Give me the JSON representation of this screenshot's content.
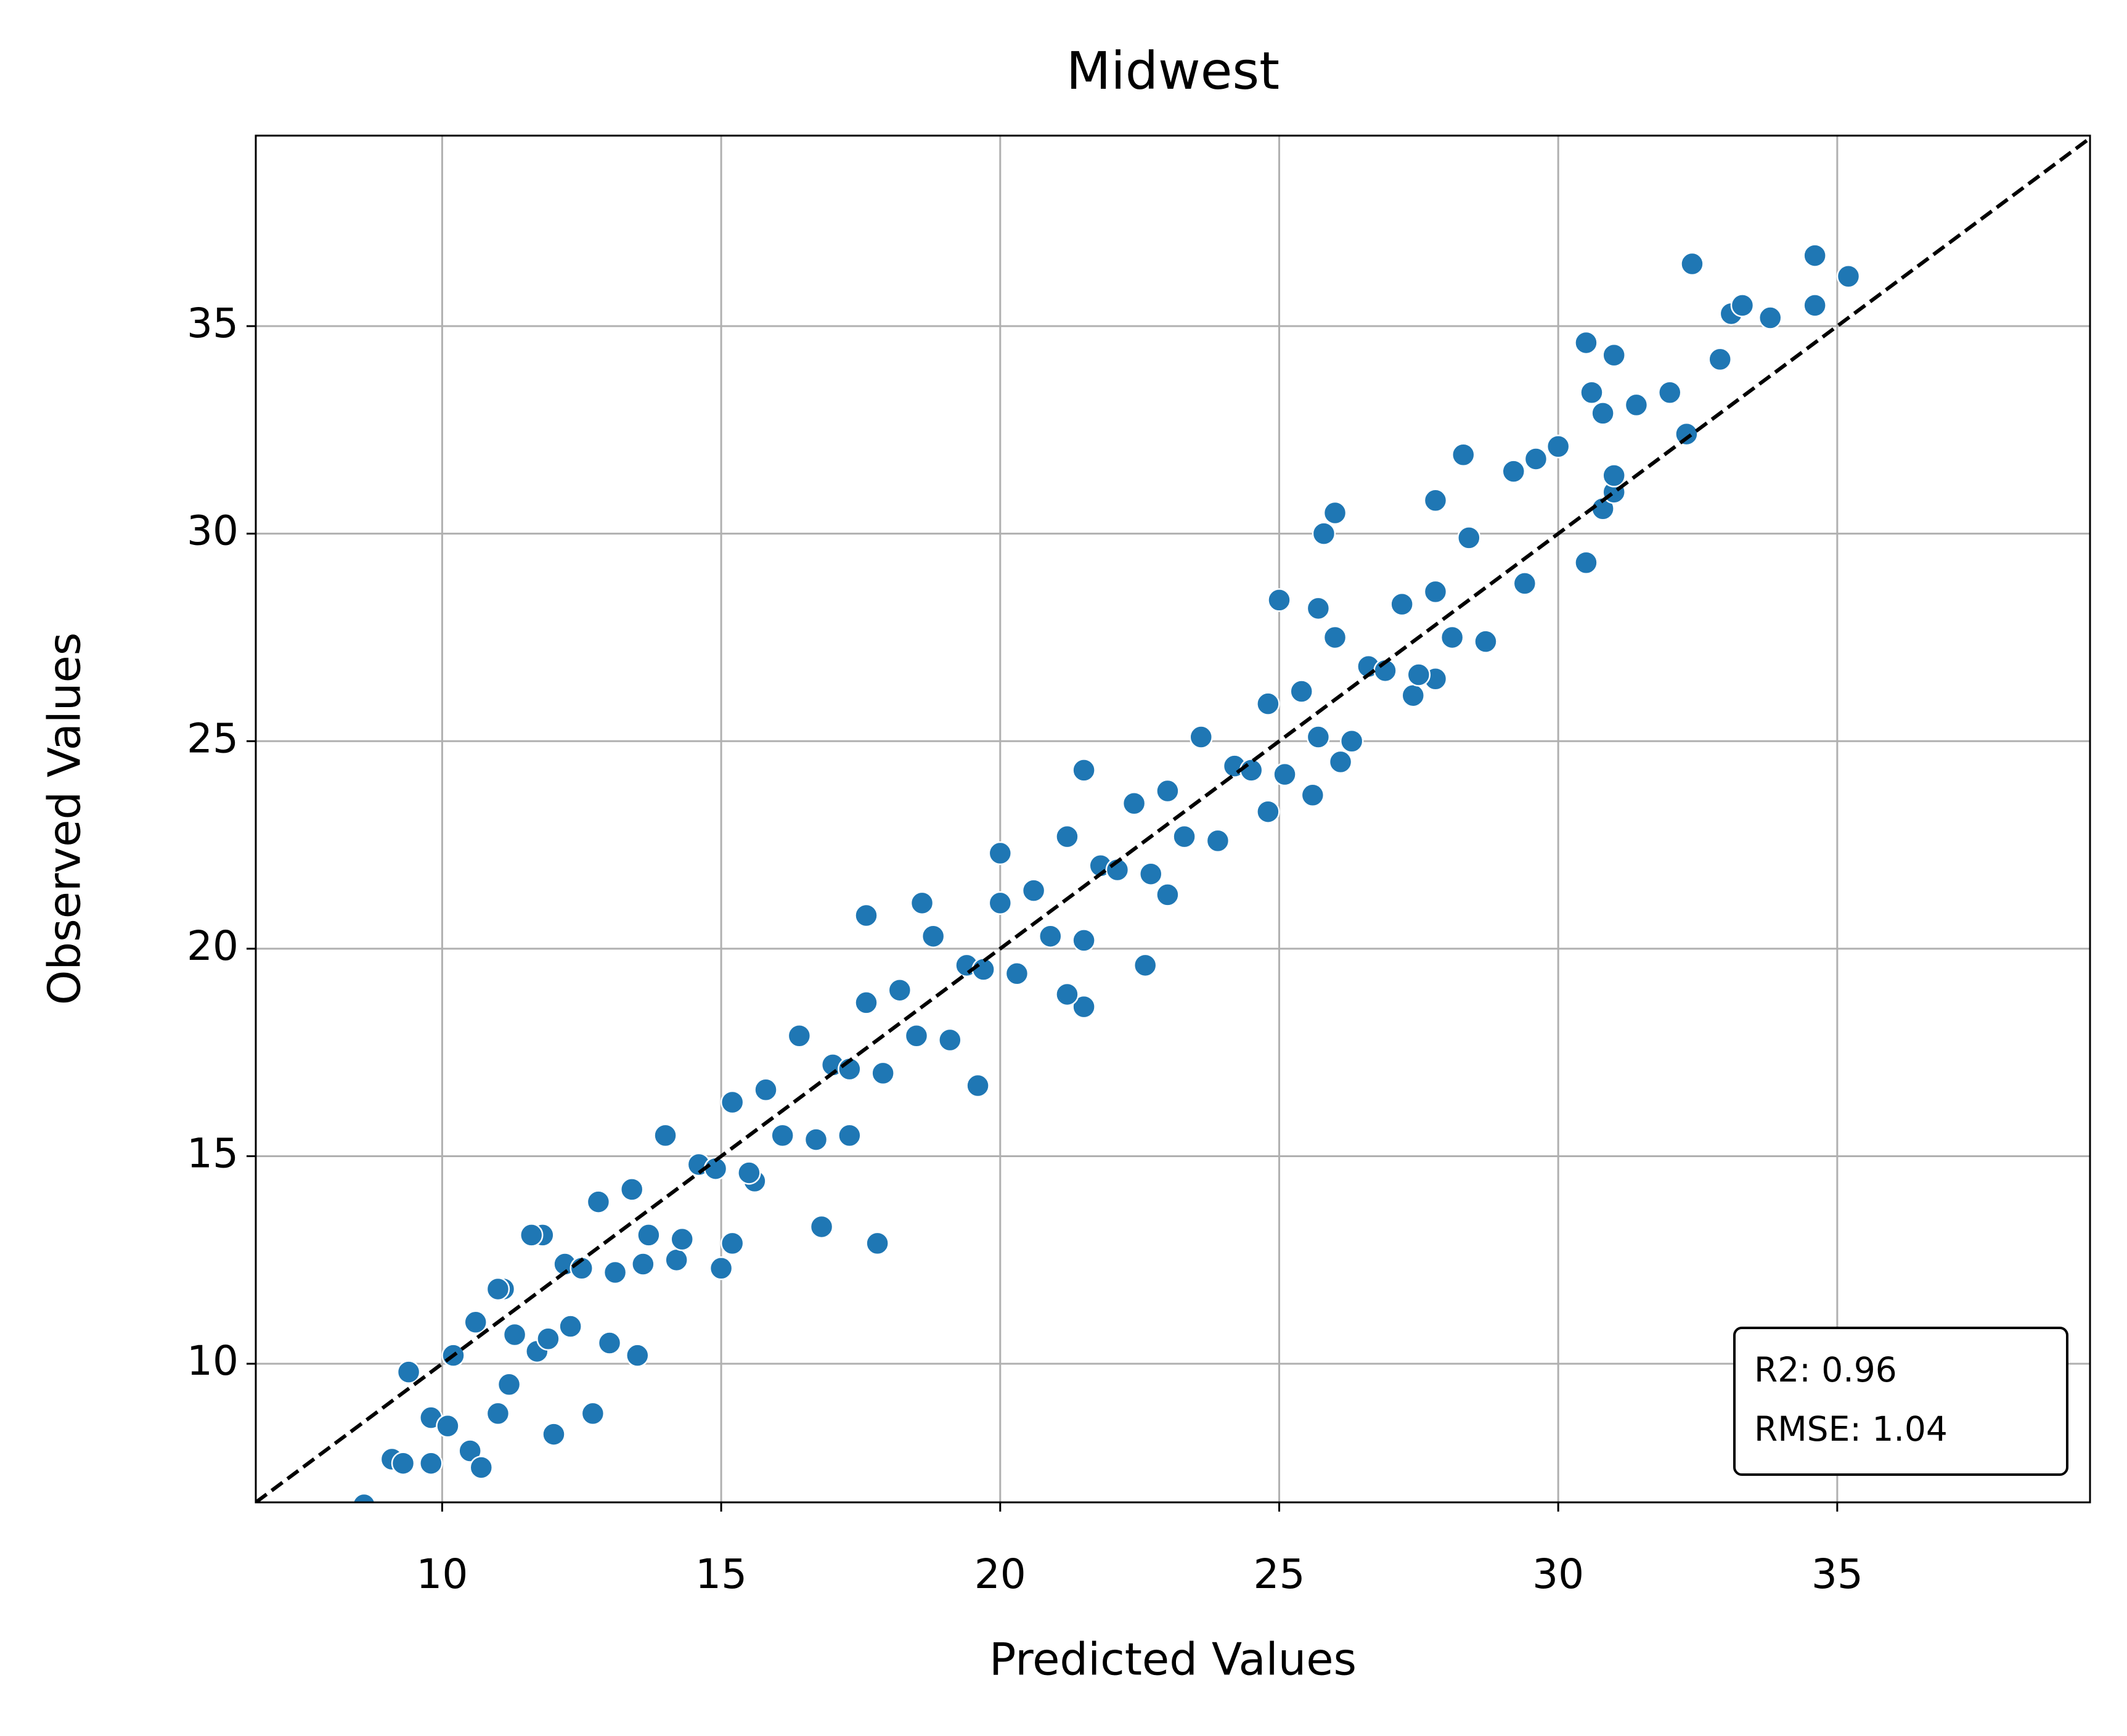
{
  "chart_data": {
    "type": "scatter",
    "title": "Midwest",
    "x_label": "Predicted Values",
    "y_label": "Observed Values",
    "annotation": [
      "R2: 0.96",
      "RMSE: 1.04"
    ],
    "color": "#1f77b4",
    "grid": true,
    "diagonal": true,
    "xlim": [
      6.66,
      39.53
    ],
    "ylim": [
      6.66,
      39.59
    ],
    "xticks": [
      10,
      15,
      20,
      25,
      30,
      35
    ],
    "yticks": [
      10,
      15,
      20,
      25,
      30,
      35
    ],
    "x": [
      8.6,
      9.1,
      9.3,
      9.8,
      9.8,
      10.1,
      10.5,
      10.7,
      11,
      12,
      12.7,
      9.4,
      10.2,
      10.6,
      11.1,
      11.8,
      13.5,
      13,
      15,
      15.2,
      16.8,
      17.8,
      17.6,
      18.6,
      20,
      21.5,
      22.6,
      21.5,
      25,
      25.7,
      26,
      25.8,
      28.3,
      27.8,
      29.2,
      29.6,
      30,
      30.5,
      31,
      30.6,
      30.8,
      31.4,
      32.4,
      33.1,
      33.3,
      33.8,
      32.9,
      32.3,
      32,
      34.6,
      34.6,
      35.2,
      30.5,
      30.8,
      31,
      31,
      29.4,
      25.6,
      26.1,
      27.4,
      27.8,
      24.8,
      23,
      21.2,
      19.6,
      17.3,
      15.6,
      14.2,
      13.6,
      12.3,
      11.2,
      11.7,
      11.0,
      11.3,
      11.6,
      11.9,
      12.2,
      12.5,
      12.8,
      13.1,
      13.4,
      13.7,
      14.0,
      14.3,
      14.6,
      14.9,
      15.2,
      15.5,
      15.8,
      16.1,
      16.4,
      16.7,
      17.0,
      17.3,
      17.6,
      17.9,
      18.2,
      18.5,
      18.8,
      19.1,
      19.4,
      19.7,
      20.0,
      20.3,
      20.6,
      20.9,
      21.2,
      21.5,
      21.8,
      22.1,
      22.4,
      22.7,
      23.0,
      23.3,
      23.6,
      23.9,
      24.2,
      24.5,
      24.8,
      25.1,
      25.4,
      25.7,
      26.0,
      26.3,
      26.6,
      26.9,
      27.2,
      27.5,
      27.8,
      28.1,
      28.4,
      28.7
    ],
    "values": [
      6.6,
      7.7,
      7.6,
      7.6,
      8.7,
      8.5,
      7.9,
      7.5,
      8.8,
      8.3,
      8.8,
      9.8,
      10.2,
      11,
      11.8,
      13.1,
      10.2,
      10.5,
      12.3,
      12.9,
      13.3,
      12.9,
      20.8,
      21.1,
      22.3,
      24.3,
      19.6,
      18.6,
      28.4,
      28.2,
      30.5,
      30,
      31.9,
      30.8,
      31.5,
      31.8,
      32.1,
      34.6,
      34.3,
      33.4,
      32.9,
      33.1,
      36.5,
      35.3,
      35.5,
      35.2,
      34.2,
      32.4,
      33.4,
      36.7,
      35.5,
      36.2,
      29.3,
      30.6,
      31,
      31.4,
      28.8,
      23.7,
      24.5,
      26.1,
      26.5,
      23.3,
      21.3,
      18.9,
      16.7,
      15.5,
      14.4,
      12.5,
      12.4,
      10.9,
      9.5,
      10.3,
      11.8,
      10.7,
      13.1,
      10.6,
      12.4,
      12.3,
      13.9,
      12.2,
      14.2,
      13.1,
      15.5,
      13.0,
      14.8,
      14.7,
      16.3,
      14.6,
      16.6,
      15.5,
      17.9,
      15.4,
      17.2,
      17.1,
      18.7,
      17.0,
      19.0,
      17.9,
      20.3,
      17.8,
      19.6,
      19.5,
      21.1,
      19.4,
      21.4,
      20.3,
      22.7,
      20.2,
      22.0,
      21.9,
      23.5,
      21.8,
      23.8,
      22.7,
      25.1,
      22.6,
      24.4,
      24.3,
      25.9,
      24.2,
      26.2,
      25.1,
      27.5,
      25.0,
      26.8,
      26.7,
      28.3,
      26.6,
      28.6,
      27.5,
      29.9,
      27.4
    ]
  }
}
